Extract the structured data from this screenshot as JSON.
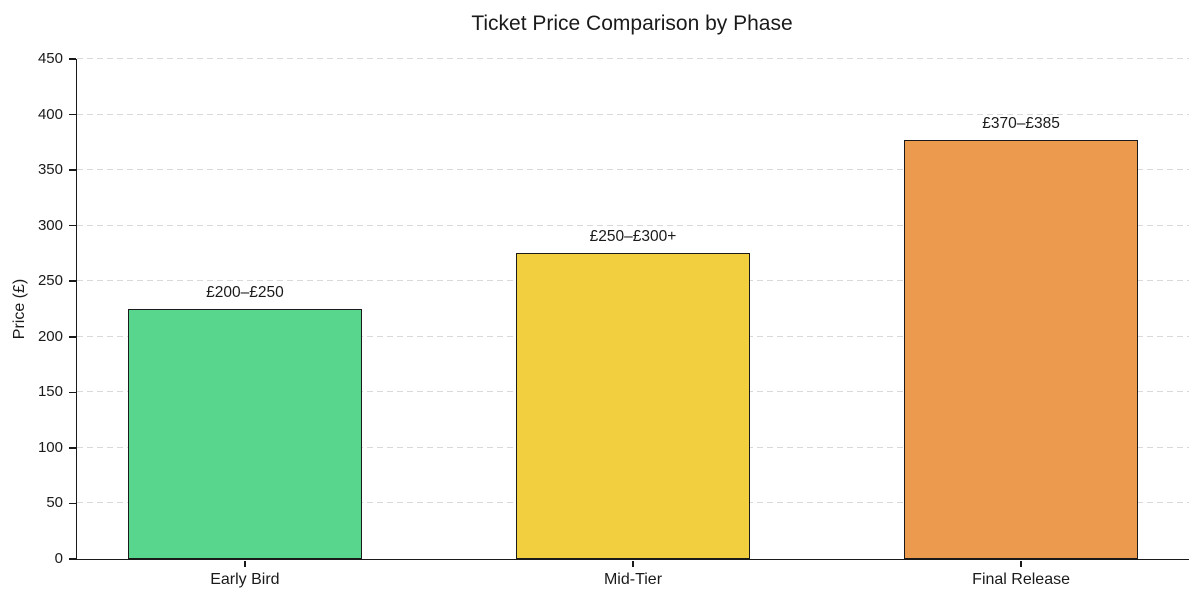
{
  "chart_data": {
    "type": "bar",
    "title": "Ticket Price Comparison by Phase",
    "xlabel": "",
    "ylabel": "Price (£)",
    "categories": [
      "Early Bird",
      "Mid-Tier",
      "Final Release"
    ],
    "values": [
      225,
      275,
      377.5
    ],
    "bar_labels": [
      "£200–£250",
      "£250–£300+",
      "£370–£385"
    ],
    "bar_colors": [
      "#58d68d",
      "#f2cf3f",
      "#ec9a4e"
    ],
    "bar_edge_color": "#1a1a1a",
    "ylim": [
      0,
      450
    ],
    "yticks": [
      0,
      50,
      100,
      150,
      200,
      250,
      300,
      350,
      400,
      450
    ],
    "grid": "horizontal-dashed",
    "gridline_color": "#d9d9d9",
    "legend_position": "none",
    "background_color": "#ffffff"
  }
}
